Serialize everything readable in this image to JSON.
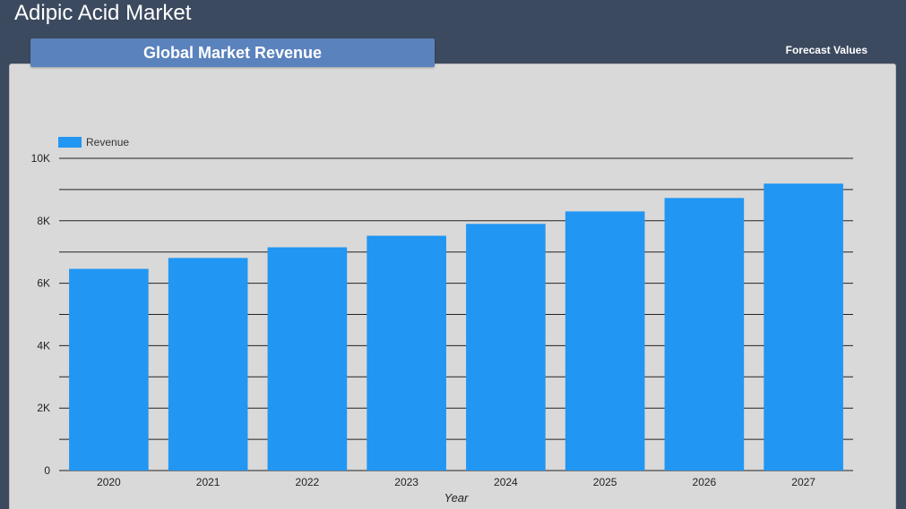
{
  "header": {
    "title": "Adipic Acid Market"
  },
  "tab": {
    "label": "Global Market Revenue"
  },
  "forecast_link": {
    "label": "Forecast Values"
  },
  "colors": {
    "background": "#3c4a5f",
    "panel": "#d9d9d9",
    "tab": "#5a82bd",
    "bar": "#2196f3"
  },
  "chart_data": {
    "type": "bar",
    "categories": [
      "2020",
      "2021",
      "2022",
      "2023",
      "2024",
      "2025",
      "2026",
      "2027"
    ],
    "series": [
      {
        "name": "Revenue",
        "values": [
          6460,
          6810,
          7150,
          7520,
          7900,
          8300,
          8730,
          9190
        ]
      }
    ],
    "xlabel": "Year",
    "ylabel": "",
    "ylim": [
      0,
      10000
    ],
    "yticks": [
      0,
      2000,
      4000,
      6000,
      8000,
      10000
    ],
    "ytick_labels": [
      "0",
      "2K",
      "4K",
      "6K",
      "8K",
      "10K"
    ],
    "grid": true,
    "legend_position": "top-left"
  }
}
